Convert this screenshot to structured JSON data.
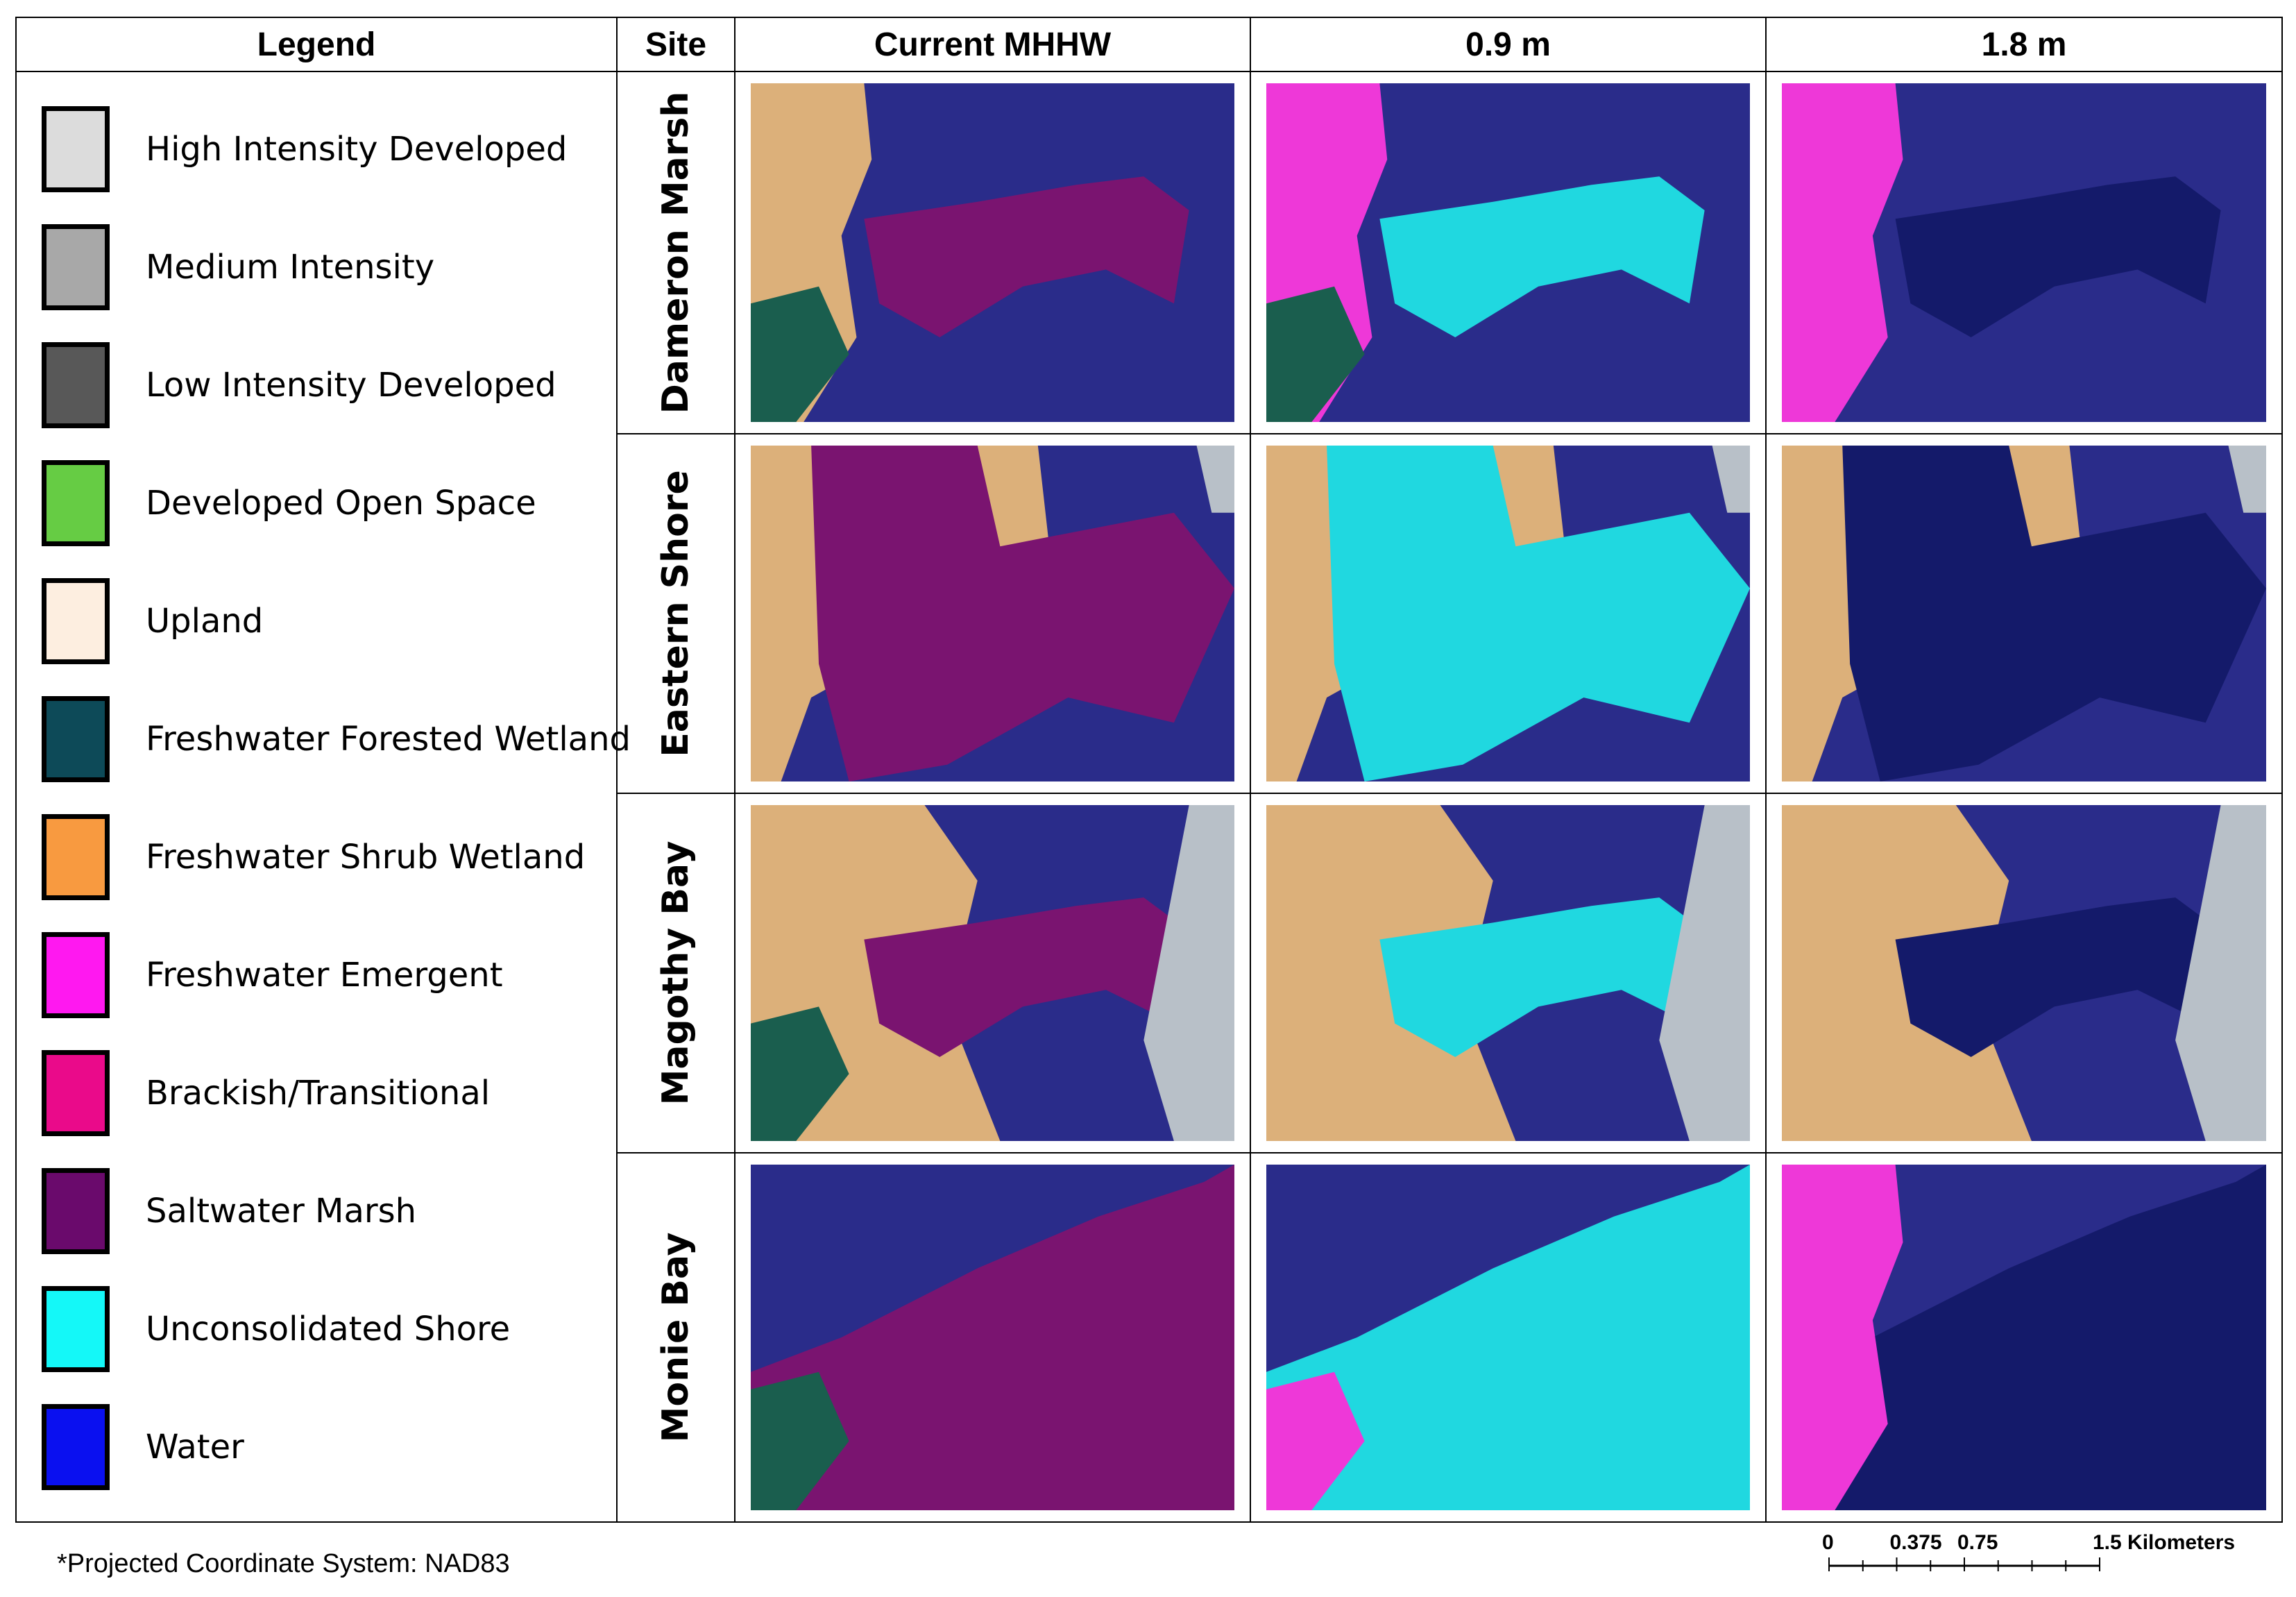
{
  "headers": {
    "legend": "Legend",
    "site": "Site",
    "scenarios": [
      "Current MHHW",
      "0.9 m",
      "1.8  m"
    ]
  },
  "legend": [
    {
      "label": "High Intensity Developed",
      "color": "#dcdcdc"
    },
    {
      "label": "Medium Intensity",
      "color": "#a8a8a8"
    },
    {
      "label": "Low Intensity Developed",
      "color": "#585858"
    },
    {
      "label": "Developed Open Space",
      "color": "#66cc44"
    },
    {
      "label": "Upland",
      "color": "#fdeee0"
    },
    {
      "label": "Freshwater Forested Wetland",
      "color": "#0d4a58"
    },
    {
      "label": "Freshwater Shrub Wetland",
      "color": "#f89a40"
    },
    {
      "label": "Freshwater Emergent",
      "color": "#ff18f0"
    },
    {
      "label": "Brackish/Transitional",
      "color": "#ea0a8a"
    },
    {
      "label": "Saltwater Marsh",
      "color": "#6a0a6c"
    },
    {
      "label": "Unconsolidated Shore",
      "color": "#14f8f8"
    },
    {
      "label": "Water",
      "color": "#0a10f0"
    }
  ],
  "sites": [
    "Dameron Marsh",
    "Eastern Shore",
    "Magothy Bay",
    "Monie Bay"
  ],
  "note": "*Projected Coordinate System: NAD83",
  "scale": {
    "labels": [
      "0",
      "0.375",
      "0.75",
      "1.5 Kilometers"
    ],
    "values_km": [
      0,
      0.375,
      0.75,
      1.5
    ]
  },
  "map_colors": {
    "water": "#2a2c8a",
    "deep_water": "#141a6a",
    "upland": "#dcb07a",
    "forest": "#1a5e4e",
    "saltmarsh": "#7a1470",
    "shore": "#20d8e0",
    "emergent": "#ee38d8",
    "openspace": "#b6c838",
    "hatch": "#b8c0c8"
  }
}
